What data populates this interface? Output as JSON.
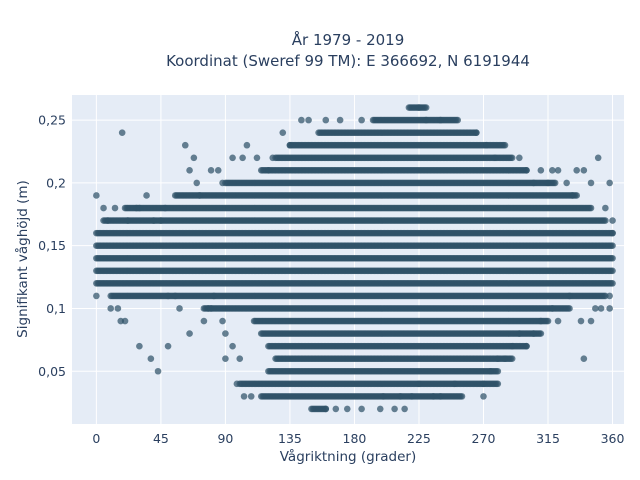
{
  "chart_data": {
    "type": "scatter",
    "title_line1": "År 1979 - 2019",
    "title_line2": "Koordinat (Sweref 99 TM): E 366692, N 6191944",
    "xlabel": "Vågriktning (grader)",
    "ylabel": "Signifikant våghöjd (m)",
    "xlim": [
      -17,
      368
    ],
    "ylim": [
      0.008,
      0.27
    ],
    "x_ticks": [
      0,
      45,
      90,
      135,
      180,
      225,
      270,
      315,
      360
    ],
    "x_tick_labels": [
      "0",
      "45",
      "90",
      "135",
      "180",
      "225",
      "270",
      "315",
      "360"
    ],
    "y_ticks": [
      0.05,
      0.1,
      0.15,
      0.2,
      0.25
    ],
    "y_tick_labels": [
      "0,05",
      "0,1",
      "0,15",
      "0,2",
      "0,25"
    ],
    "grid": true,
    "legend": "none",
    "marker_color": "#2f5268",
    "background_color": "#e5ecf6",
    "x_step": 1,
    "density_bands": [
      {
        "y": 0.26,
        "x_min": 218,
        "x_max": 230
      },
      {
        "y": 0.25,
        "x_min": 193,
        "x_max": 252
      },
      {
        "y": 0.24,
        "x_min": 155,
        "x_max": 265
      },
      {
        "y": 0.23,
        "x_min": 135,
        "x_max": 285
      },
      {
        "y": 0.22,
        "x_min": 125,
        "x_max": 290
      },
      {
        "y": 0.21,
        "x_min": 115,
        "x_max": 300
      },
      {
        "y": 0.2,
        "x_min": 90,
        "x_max": 320
      },
      {
        "y": 0.19,
        "x_min": 55,
        "x_max": 335
      },
      {
        "y": 0.18,
        "x_min": 20,
        "x_max": 345
      },
      {
        "y": 0.17,
        "x_min": 5,
        "x_max": 355
      },
      {
        "y": 0.16,
        "x_min": 0,
        "x_max": 360
      },
      {
        "y": 0.15,
        "x_min": 0,
        "x_max": 360
      },
      {
        "y": 0.14,
        "x_min": 0,
        "x_max": 360
      },
      {
        "y": 0.13,
        "x_min": 0,
        "x_max": 360
      },
      {
        "y": 0.12,
        "x_min": 0,
        "x_max": 360
      },
      {
        "y": 0.11,
        "x_min": 10,
        "x_max": 355
      },
      {
        "y": 0.1,
        "x_min": 75,
        "x_max": 330
      },
      {
        "y": 0.09,
        "x_min": 110,
        "x_max": 315
      },
      {
        "y": 0.08,
        "x_min": 115,
        "x_max": 310
      },
      {
        "y": 0.07,
        "x_min": 120,
        "x_max": 300
      },
      {
        "y": 0.06,
        "x_min": 125,
        "x_max": 290
      },
      {
        "y": 0.05,
        "x_min": 120,
        "x_max": 280
      },
      {
        "y": 0.04,
        "x_min": 100,
        "x_max": 280
      },
      {
        "y": 0.03,
        "x_min": 115,
        "x_max": 255
      },
      {
        "y": 0.02,
        "x_min": 150,
        "x_max": 160
      }
    ],
    "scattered_points": [
      [
        18,
        0.24
      ],
      [
        0,
        0.19
      ],
      [
        5,
        0.18
      ],
      [
        8,
        0.17
      ],
      [
        13,
        0.18
      ],
      [
        0,
        0.11
      ],
      [
        10,
        0.1
      ],
      [
        15,
        0.1
      ],
      [
        20,
        0.09
      ],
      [
        17,
        0.09
      ],
      [
        22,
        0.17
      ],
      [
        28,
        0.18
      ],
      [
        35,
        0.19
      ],
      [
        30,
        0.18
      ],
      [
        40,
        0.17
      ],
      [
        48,
        0.18
      ],
      [
        45,
        0.17
      ],
      [
        50,
        0.11
      ],
      [
        58,
        0.1
      ],
      [
        55,
        0.11
      ],
      [
        30,
        0.07
      ],
      [
        38,
        0.06
      ],
      [
        43,
        0.05
      ],
      [
        50,
        0.07
      ],
      [
        62,
        0.23
      ],
      [
        65,
        0.21
      ],
      [
        68,
        0.22
      ],
      [
        70,
        0.2
      ],
      [
        72,
        0.19
      ],
      [
        80,
        0.21
      ],
      [
        85,
        0.21
      ],
      [
        88,
        0.2
      ],
      [
        95,
        0.22
      ],
      [
        78,
        0.1
      ],
      [
        82,
        0.11
      ],
      [
        65,
        0.08
      ],
      [
        75,
        0.09
      ],
      [
        80,
        0.1
      ],
      [
        88,
        0.09
      ],
      [
        90,
        0.08
      ],
      [
        95,
        0.07
      ],
      [
        90,
        0.06
      ],
      [
        100,
        0.06
      ],
      [
        98,
        0.04
      ],
      [
        103,
        0.03
      ],
      [
        108,
        0.03
      ],
      [
        102,
        0.22
      ],
      [
        105,
        0.23
      ],
      [
        112,
        0.22
      ],
      [
        120,
        0.21
      ],
      [
        123,
        0.22
      ],
      [
        130,
        0.24
      ],
      [
        135,
        0.23
      ],
      [
        143,
        0.25
      ],
      [
        148,
        0.25
      ],
      [
        160,
        0.25
      ],
      [
        170,
        0.25
      ],
      [
        185,
        0.25
      ],
      [
        160,
        0.02
      ],
      [
        167,
        0.02
      ],
      [
        175,
        0.02
      ],
      [
        185,
        0.02
      ],
      [
        198,
        0.02
      ],
      [
        208,
        0.02
      ],
      [
        215,
        0.02
      ],
      [
        200,
        0.03
      ],
      [
        212,
        0.03
      ],
      [
        220,
        0.03
      ],
      [
        225,
        0.04
      ],
      [
        235,
        0.03
      ],
      [
        240,
        0.03
      ],
      [
        250,
        0.04
      ],
      [
        270,
        0.03
      ],
      [
        270,
        0.04
      ],
      [
        275,
        0.05
      ],
      [
        280,
        0.06
      ],
      [
        285,
        0.06
      ],
      [
        290,
        0.07
      ],
      [
        295,
        0.08
      ],
      [
        300,
        0.07
      ],
      [
        305,
        0.08
      ],
      [
        310,
        0.09
      ],
      [
        318,
        0.1
      ],
      [
        322,
        0.09
      ],
      [
        330,
        0.11
      ],
      [
        338,
        0.09
      ],
      [
        340,
        0.06
      ],
      [
        345,
        0.09
      ],
      [
        348,
        0.1
      ],
      [
        352,
        0.1
      ],
      [
        358,
        0.11
      ],
      [
        358,
        0.1
      ],
      [
        295,
        0.22
      ],
      [
        300,
        0.21
      ],
      [
        305,
        0.2
      ],
      [
        310,
        0.21
      ],
      [
        315,
        0.2
      ],
      [
        318,
        0.21
      ],
      [
        322,
        0.21
      ],
      [
        328,
        0.2
      ],
      [
        332,
        0.19
      ],
      [
        335,
        0.21
      ],
      [
        340,
        0.21
      ],
      [
        345,
        0.2
      ],
      [
        350,
        0.22
      ],
      [
        358,
        0.2
      ],
      [
        355,
        0.18
      ],
      [
        360,
        0.17
      ],
      [
        360,
        0.16
      ],
      [
        265,
        0.24
      ],
      [
        272,
        0.23
      ],
      [
        278,
        0.22
      ],
      [
        240,
        0.25
      ],
      [
        230,
        0.25
      ],
      [
        225,
        0.26
      ]
    ]
  }
}
